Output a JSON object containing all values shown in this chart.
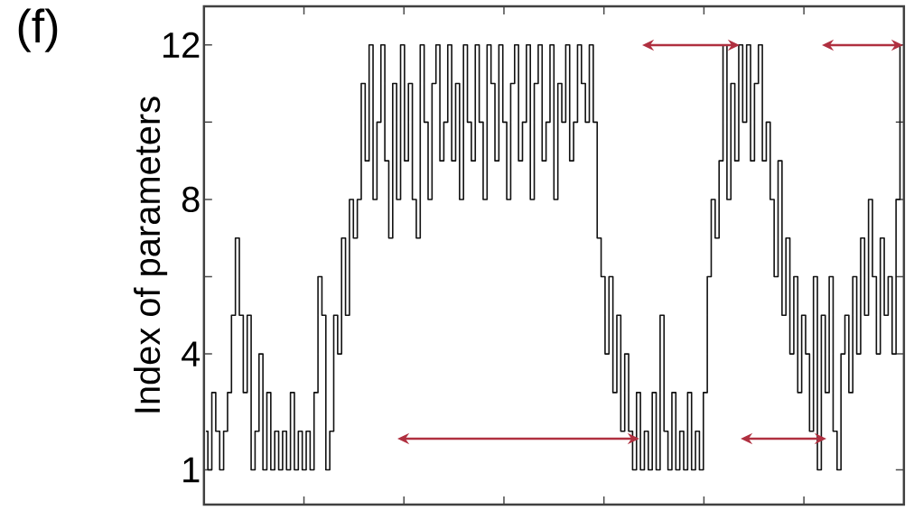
{
  "chart_data": {
    "type": "step",
    "ylabel": "Index of parameters",
    "annotations": [
      "(f)"
    ],
    "categories": [
      null,
      null,
      null,
      null,
      null,
      null,
      null,
      null,
      null,
      null,
      null,
      null,
      null,
      null,
      null,
      null,
      null,
      null,
      null,
      null,
      null,
      null,
      null,
      null,
      null,
      null,
      null,
      null,
      null,
      null,
      null,
      null,
      null,
      null,
      null,
      null,
      null,
      null,
      null,
      null,
      null,
      null,
      null,
      null,
      null,
      null,
      null,
      null,
      null,
      null,
      null,
      null,
      null,
      null,
      null,
      null,
      null,
      null,
      null,
      null,
      null,
      null,
      null,
      null,
      null,
      null,
      null,
      null,
      null,
      null,
      null,
      null,
      null,
      null,
      null,
      null,
      null,
      null,
      null,
      null,
      null,
      null,
      null,
      null,
      null,
      null,
      null,
      null,
      null,
      null,
      null,
      null,
      null,
      null,
      null,
      null,
      null,
      null,
      null,
      null,
      null,
      null,
      null,
      null,
      null,
      null,
      null,
      null,
      null,
      null,
      null,
      null,
      null,
      null,
      null,
      null,
      null,
      null,
      null,
      null,
      null,
      null,
      null,
      null,
      null,
      null,
      null,
      null,
      null,
      null,
      null,
      null,
      null,
      null,
      null,
      null,
      null,
      null,
      null,
      null,
      null,
      null,
      null,
      null,
      null,
      null,
      null,
      null,
      null,
      null,
      null,
      null,
      null,
      null,
      null,
      null,
      null,
      null,
      null,
      null,
      null,
      null,
      null,
      null,
      null,
      null,
      null,
      null,
      null,
      null,
      null,
      null,
      null,
      null,
      null,
      null,
      null,
      null
    ],
    "ylim": [
      0.1,
      13
    ],
    "yticks": [
      1,
      4,
      {
        "value": 6,
        "label": null
      },
      8,
      {
        "value": 10,
        "label": null
      },
      12
    ],
    "tick_labels": "y",
    "marker": "none",
    "series": [
      {
        "color": "#111111",
        "values": [
          2,
          1,
          3,
          2,
          1,
          2,
          3,
          5,
          7,
          5,
          3,
          5,
          1,
          2,
          4,
          1,
          3,
          1,
          2,
          1,
          2,
          1,
          3,
          1,
          2,
          1,
          2,
          1,
          3,
          6,
          5,
          1,
          2,
          5,
          4,
          7,
          5,
          8,
          7,
          8,
          11,
          9,
          12,
          8,
          10,
          12,
          9,
          7,
          11,
          8,
          12,
          9,
          11,
          8,
          7,
          12,
          10,
          8,
          11,
          12,
          9,
          10,
          12,
          9,
          11,
          8,
          12,
          10,
          9,
          12,
          10,
          8,
          12,
          11,
          9,
          12,
          10,
          8,
          11,
          12,
          9,
          10,
          12,
          8,
          11,
          12,
          9,
          10,
          12,
          8,
          11,
          10,
          12,
          9,
          10,
          12,
          11,
          10,
          12,
          10,
          7,
          6,
          4,
          6,
          3,
          5,
          2,
          4,
          2,
          1,
          3,
          1,
          2,
          1,
          3,
          1,
          5,
          2,
          1,
          3,
          1,
          2,
          1,
          3,
          1,
          2,
          1,
          3,
          6,
          8,
          7,
          9,
          12,
          8,
          11,
          9,
          12,
          10,
          12,
          9,
          11,
          12,
          9,
          10,
          8,
          6,
          9,
          5,
          7,
          4,
          6,
          3,
          5,
          4,
          2,
          6,
          1,
          5,
          3,
          6,
          2,
          1,
          4,
          5,
          3,
          6,
          4,
          7,
          5,
          8,
          6,
          4,
          7,
          5,
          6,
          4,
          8,
          12
        ]
      }
    ]
  }
}
